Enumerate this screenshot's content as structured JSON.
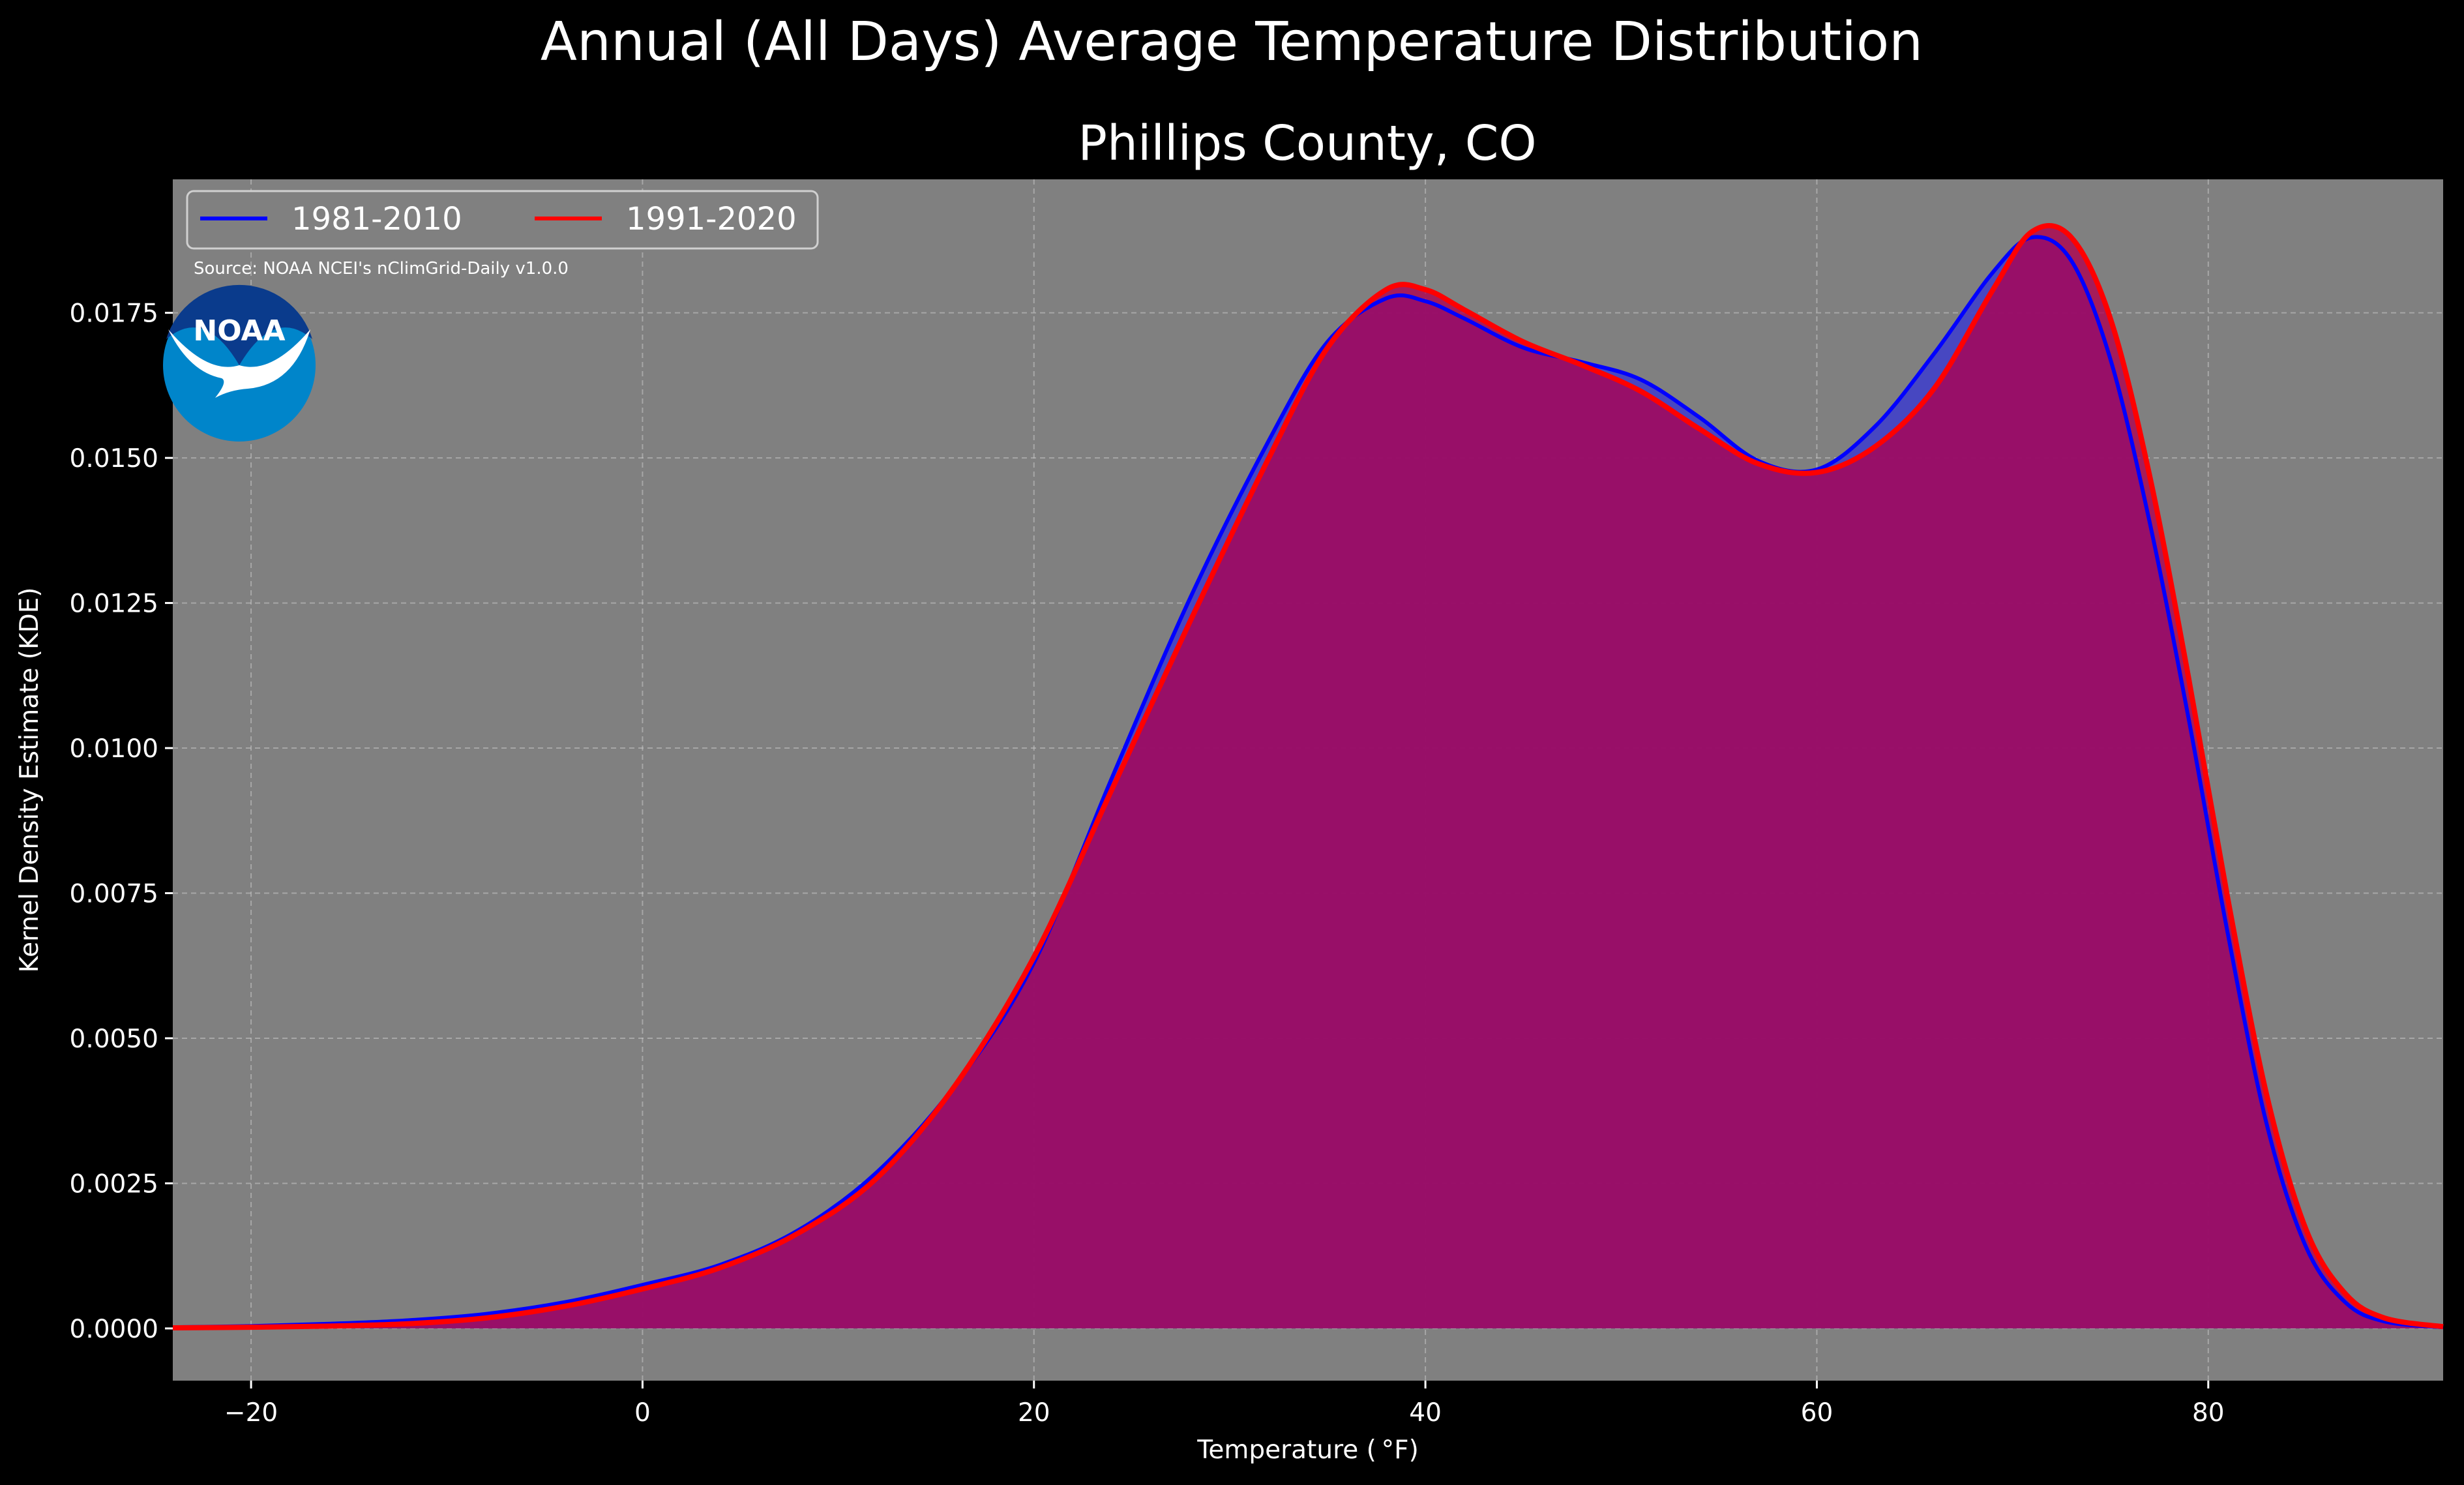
{
  "chart_data": {
    "type": "area",
    "title": "Annual (All Days) Average Temperature Distribution",
    "subtitle": "Phillips County, CO",
    "xlabel": "Temperature ($^\\circ$F)",
    "xlabel_display": "Temperature ( °F)",
    "ylabel": "Kernel Density Estimate (KDE)",
    "xlim": [
      -24,
      92
    ],
    "ylim": [
      -0.0009,
      0.0198
    ],
    "x_ticks": [
      -20,
      0,
      20,
      40,
      60,
      80
    ],
    "x_tick_labels": [
      "−20",
      "0",
      "20",
      "40",
      "60",
      "80"
    ],
    "y_ticks": [
      0,
      0.0025,
      0.005,
      0.0075,
      0.01,
      0.0125,
      0.015,
      0.0175
    ],
    "y_tick_labels": [
      "0.0000",
      "0.0025",
      "0.0050",
      "0.0075",
      "0.0100",
      "0.0125",
      "0.0150",
      "0.0175"
    ],
    "grid": true,
    "legend_position": "top-left",
    "source_note": "Source: NOAA NCEI's nClimGrid-Daily v1.0.0",
    "logo_text": "NOAA",
    "series": [
      {
        "name": "1981-2010",
        "color": "#0000ff",
        "fill": "#4040c8",
        "points": [
          [
            -24,
            2e-05
          ],
          [
            -20,
            4e-05
          ],
          [
            -16,
            8e-05
          ],
          [
            -12,
            0.00014
          ],
          [
            -8,
            0.00025
          ],
          [
            -4,
            0.00045
          ],
          [
            0,
            0.00075
          ],
          [
            4,
            0.0011
          ],
          [
            8,
            0.0017
          ],
          [
            12,
            0.0027
          ],
          [
            16,
            0.0042
          ],
          [
            20,
            0.0063
          ],
          [
            24,
            0.0095
          ],
          [
            28,
            0.0126
          ],
          [
            32,
            0.0153
          ],
          [
            35,
            0.017
          ],
          [
            38,
            0.01775
          ],
          [
            40,
            0.0177
          ],
          [
            42,
            0.0174
          ],
          [
            45,
            0.0169
          ],
          [
            48,
            0.01665
          ],
          [
            51,
            0.01635
          ],
          [
            54,
            0.0157
          ],
          [
            57,
            0.01495
          ],
          [
            60,
            0.0148
          ],
          [
            63,
            0.01555
          ],
          [
            66,
            0.0168
          ],
          [
            69,
            0.0182
          ],
          [
            71,
            0.0188
          ],
          [
            73,
            0.0184
          ],
          [
            75,
            0.0167
          ],
          [
            77,
            0.0139
          ],
          [
            79,
            0.0105
          ],
          [
            81,
            0.0068
          ],
          [
            83,
            0.0035
          ],
          [
            85,
            0.0014
          ],
          [
            87,
            0.00045
          ],
          [
            89,
            0.00012
          ],
          [
            92,
            2e-05
          ]
        ]
      },
      {
        "name": "1991-2020",
        "color": "#ff0000",
        "fill": "#b00050",
        "points": [
          [
            -24,
            1e-05
          ],
          [
            -20,
            2e-05
          ],
          [
            -16,
            4e-05
          ],
          [
            -12,
            8e-05
          ],
          [
            -8,
            0.00018
          ],
          [
            -4,
            0.00038
          ],
          [
            0,
            0.00068
          ],
          [
            4,
            0.00105
          ],
          [
            8,
            0.00165
          ],
          [
            12,
            0.0026
          ],
          [
            16,
            0.0042
          ],
          [
            20,
            0.0064
          ],
          [
            24,
            0.0093
          ],
          [
            28,
            0.0122
          ],
          [
            32,
            0.015
          ],
          [
            35,
            0.0169
          ],
          [
            38,
            0.0179
          ],
          [
            40,
            0.0179
          ],
          [
            42,
            0.01755
          ],
          [
            45,
            0.017
          ],
          [
            48,
            0.0166
          ],
          [
            51,
            0.01615
          ],
          [
            54,
            0.0155
          ],
          [
            57,
            0.0149
          ],
          [
            60,
            0.01475
          ],
          [
            63,
            0.0152
          ],
          [
            66,
            0.0162
          ],
          [
            69,
            0.0179
          ],
          [
            71,
            0.0189
          ],
          [
            73,
            0.0188
          ],
          [
            75,
            0.0174
          ],
          [
            77,
            0.0147
          ],
          [
            79,
            0.0112
          ],
          [
            81,
            0.0074
          ],
          [
            83,
            0.004
          ],
          [
            85,
            0.0017
          ],
          [
            87,
            0.0006
          ],
          [
            89,
            0.00018
          ],
          [
            92,
            3e-05
          ]
        ]
      }
    ]
  }
}
